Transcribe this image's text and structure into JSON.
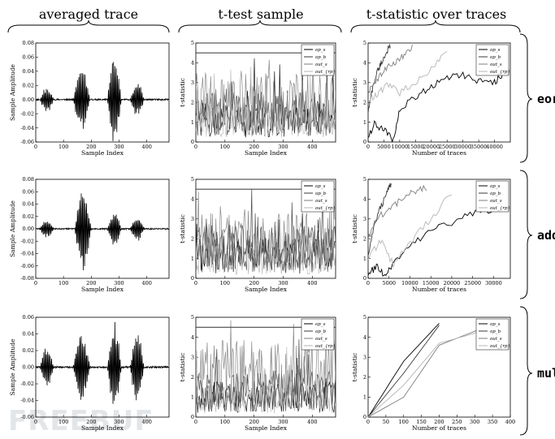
{
  "column_titles": [
    "averaged trace",
    "t-test sample",
    "t-statistic over traces"
  ],
  "row_labels": [
    "eor",
    "add",
    "mul"
  ],
  "watermark": "FREEBUF",
  "colors": {
    "black": "#000000",
    "dark": "#3a3a3a",
    "mid": "#7d7d7d",
    "light": "#b5b5b5",
    "threshold": "#4a4a4a"
  },
  "legend_entries": [
    "op_s",
    "op_b",
    "out_s",
    "out_{rp}"
  ],
  "chart_data": [
    {
      "id": "eor-avg",
      "type": "line",
      "row": "eor",
      "xlabel": "Sample Index",
      "ylabel": "Sample Amplitude",
      "xlim": [
        0,
        480
      ],
      "ylim": [
        -0.06,
        0.08
      ],
      "xticks": [
        "0",
        "100",
        "200",
        "300",
        "400"
      ],
      "yticks": [
        "0.08",
        "0.06",
        "0.04",
        "0.02",
        "0.00",
        "-0.02",
        "-0.04",
        "-0.06"
      ],
      "bursts": [
        {
          "x": 40,
          "w": 25,
          "amp": 0.018
        },
        {
          "x": 165,
          "w": 30,
          "amp": 0.045
        },
        {
          "x": 283,
          "w": 25,
          "amp": 0.065
        },
        {
          "x": 365,
          "w": 25,
          "amp": 0.025
        }
      ]
    },
    {
      "id": "eor-ttest",
      "type": "line",
      "row": "eor",
      "xlabel": "Sample Index",
      "ylabel": "t-statistic",
      "xlim": [
        0,
        480
      ],
      "ylim": [
        0,
        5
      ],
      "threshold": 4.5,
      "xticks": [
        "0",
        "100",
        "200",
        "300",
        "400"
      ],
      "yticks": [
        "5",
        "4",
        "3",
        "2",
        "1",
        "0"
      ],
      "series": [
        {
          "name": "op_s",
          "level": 1.1
        },
        {
          "name": "op_b",
          "level": 1.4
        },
        {
          "name": "out_s",
          "level": 2.0
        },
        {
          "name": "out_{rp}",
          "level": 0.9
        }
      ]
    },
    {
      "id": "eor-tstat",
      "type": "line",
      "row": "eor",
      "xlabel": "Number of traces",
      "ylabel": "t-statistic",
      "xlim": [
        0,
        45000
      ],
      "ylim": [
        0,
        5
      ],
      "xticks": [
        "0",
        "5000",
        "10000",
        "15000",
        "20000",
        "25000",
        "30000",
        "35000",
        "40000"
      ],
      "yticks": [
        "5",
        "4",
        "3",
        "2",
        "1",
        "0"
      ],
      "series": [
        {
          "name": "op_s",
          "x": [
            0,
            2000,
            5000,
            8000,
            10000,
            15000,
            20000,
            25000,
            30000,
            35000,
            40000,
            43000
          ],
          "y": [
            0.3,
            0.9,
            0.6,
            0.1,
            1.6,
            2.3,
            2.8,
            3.3,
            3.4,
            3.1,
            3.0,
            3.5
          ]
        },
        {
          "name": "op_b",
          "x": [
            0,
            1500,
            3000,
            4500,
            6000,
            7000
          ],
          "y": [
            1.5,
            2.8,
            3.6,
            4.1,
            4.6,
            4.8
          ]
        },
        {
          "name": "out_s",
          "x": [
            0,
            2000,
            5000,
            8000,
            11000,
            14000
          ],
          "y": [
            2.5,
            3.0,
            3.6,
            4.0,
            4.3,
            4.9
          ]
        },
        {
          "name": "out_{rp}",
          "x": [
            0,
            3000,
            6000,
            10000,
            15000,
            20000,
            25000
          ],
          "y": [
            2.2,
            2.4,
            2.9,
            2.5,
            3.0,
            3.7,
            4.5
          ]
        }
      ]
    },
    {
      "id": "add-avg",
      "type": "line",
      "row": "add",
      "xlabel": "Sample Index",
      "ylabel": "Sample Amplitude",
      "xlim": [
        0,
        480
      ],
      "ylim": [
        -0.08,
        0.08
      ],
      "xticks": [
        "0",
        "100",
        "200",
        "300",
        "400"
      ],
      "yticks": [
        "0.08",
        "0.06",
        "0.04",
        "0.02",
        "0.00",
        "-0.02",
        "-0.04",
        "-0.06",
        "-0.08"
      ],
      "bursts": [
        {
          "x": 40,
          "w": 25,
          "amp": 0.015
        },
        {
          "x": 170,
          "w": 30,
          "amp": 0.07
        },
        {
          "x": 283,
          "w": 25,
          "amp": 0.03
        },
        {
          "x": 365,
          "w": 25,
          "amp": 0.02
        }
      ]
    },
    {
      "id": "add-ttest",
      "type": "line",
      "row": "add",
      "xlabel": "Sample Index",
      "ylabel": "t-statistic",
      "xlim": [
        0,
        480
      ],
      "ylim": [
        0,
        5
      ],
      "threshold": 4.5,
      "xticks": [
        "0",
        "100",
        "200",
        "300",
        "400"
      ],
      "yticks": [
        "5",
        "4",
        "3",
        "2",
        "1",
        "0"
      ],
      "series": [
        {
          "name": "op_s",
          "level": 1.2
        },
        {
          "name": "op_b",
          "level": 1.5
        },
        {
          "name": "out_s",
          "level": 1.9
        },
        {
          "name": "out_{rp}",
          "level": 1.0
        }
      ]
    },
    {
      "id": "add-tstat",
      "type": "line",
      "row": "add",
      "xlabel": "Number of traces",
      "ylabel": "t-statistic",
      "xlim": [
        0,
        34000
      ],
      "ylim": [
        0,
        5
      ],
      "xticks": [
        "0",
        "5000",
        "10000",
        "15000",
        "20000",
        "25000",
        "30000"
      ],
      "yticks": [
        "5",
        "4",
        "3",
        "2",
        "1",
        "0"
      ],
      "series": [
        {
          "name": "op_s",
          "x": [
            0,
            2000,
            4000,
            6000,
            10000,
            15000,
            20000,
            25000,
            30000,
            33000
          ],
          "y": [
            0.2,
            0.6,
            0.1,
            0.8,
            1.6,
            2.4,
            2.8,
            3.3,
            3.5,
            4.2
          ]
        },
        {
          "name": "op_b",
          "x": [
            0,
            1500,
            3000,
            4500,
            5500
          ],
          "y": [
            1.2,
            2.7,
            3.6,
            4.3,
            4.8
          ]
        },
        {
          "name": "out_s",
          "x": [
            0,
            2000,
            5000,
            8000,
            11000,
            14000
          ],
          "y": [
            2.0,
            3.0,
            3.5,
            4.0,
            4.4,
            4.6
          ]
        },
        {
          "name": "out_{rp}",
          "x": [
            0,
            3000,
            6000,
            10000,
            15000,
            20000
          ],
          "y": [
            1.0,
            1.9,
            0.7,
            1.8,
            3.0,
            4.3
          ]
        }
      ]
    },
    {
      "id": "mul-avg",
      "type": "line",
      "row": "mul",
      "xlabel": "Sample Index",
      "ylabel": "Sample Amplitude",
      "xlim": [
        0,
        480
      ],
      "ylim": [
        -0.06,
        0.06
      ],
      "xticks": [
        "0",
        "100",
        "200",
        "300",
        "400"
      ],
      "yticks": [
        "0.06",
        "0.04",
        "0.02",
        "0.00",
        "-0.02",
        "-0.04",
        "-0.06"
      ],
      "bursts": [
        {
          "x": 40,
          "w": 25,
          "amp": 0.025
        },
        {
          "x": 165,
          "w": 30,
          "amp": 0.045
        },
        {
          "x": 283,
          "w": 25,
          "amp": 0.055
        },
        {
          "x": 365,
          "w": 25,
          "amp": 0.045
        }
      ]
    },
    {
      "id": "mul-ttest",
      "type": "line",
      "row": "mul",
      "xlabel": "Sample Index",
      "ylabel": "t-statistic",
      "xlim": [
        0,
        480
      ],
      "ylim": [
        0,
        5
      ],
      "threshold": 4.5,
      "xticks": [
        "0",
        "100",
        "200",
        "300",
        "400"
      ],
      "yticks": [
        "5",
        "4",
        "3",
        "2",
        "1",
        "0"
      ],
      "series": [
        {
          "name": "op_s",
          "level": 1.0
        },
        {
          "name": "op_b",
          "level": 1.3
        },
        {
          "name": "out_s",
          "level": 2.2
        },
        {
          "name": "out_{rp}",
          "level": 0.9
        }
      ]
    },
    {
      "id": "mul-tstat",
      "type": "line",
      "row": "mul",
      "xlabel": "Number of traces",
      "ylabel": "t-statistic",
      "xlim": [
        0,
        400
      ],
      "ylim": [
        0,
        5
      ],
      "xticks": [
        "0",
        "50",
        "100",
        "150",
        "200",
        "250",
        "300",
        "350",
        "400"
      ],
      "yticks": [
        "5",
        "4",
        "3",
        "2",
        "1",
        "0"
      ],
      "series": [
        {
          "name": "op_s",
          "x": [
            0,
            100,
            200
          ],
          "y": [
            0,
            2.8,
            4.7
          ]
        },
        {
          "name": "op_b",
          "x": [
            0,
            100,
            200
          ],
          "y": [
            0,
            2.2,
            4.6
          ]
        },
        {
          "name": "out_s",
          "x": [
            0,
            100,
            200,
            300,
            350
          ],
          "y": [
            0,
            1.0,
            3.6,
            4.3,
            4.8
          ]
        },
        {
          "name": "out_{rp}",
          "x": [
            0,
            100,
            200,
            300,
            350
          ],
          "y": [
            0,
            1.6,
            3.7,
            4.2,
            4.6
          ]
        }
      ]
    }
  ]
}
